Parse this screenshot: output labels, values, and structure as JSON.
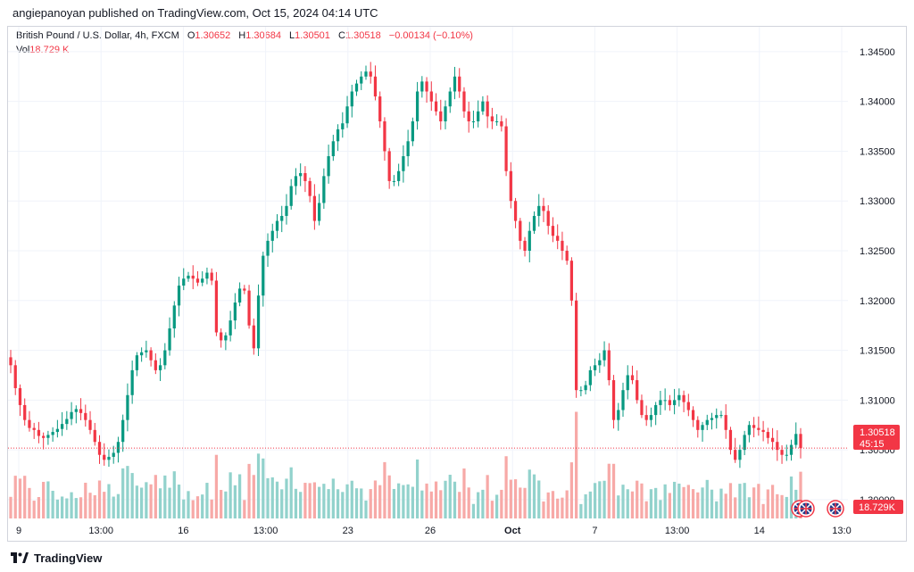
{
  "header": {
    "publisher_line": "angiepanoyan published on TradingView.com, Oct 15, 2024 04:14 UTC"
  },
  "legend": {
    "symbol": "British Pound / U.S. Dollar, 4h, FXCM",
    "open_label": "O",
    "open": "1.30652",
    "high_label": "H",
    "high": "1.30684",
    "low_label": "L",
    "low": "1.30501",
    "close_label": "C",
    "close": "1.30518",
    "change": "−0.00134 (−0.10%)",
    "vol_label": "Vol",
    "vol_value": "18.729 K"
  },
  "price_axis": {
    "last_price_label": "1.30518",
    "countdown": "45:15",
    "volume_label": "18.729K"
  },
  "footer": {
    "brand": "TradingView"
  },
  "colors": {
    "up": "#089981",
    "down": "#f23645",
    "up_vol": "#92d2cc",
    "down_vol": "#f7a9a7",
    "grid": "#f0f3fa"
  },
  "chart_data": {
    "type": "candlestick",
    "symbol": "GBP/USD",
    "interval": "4h",
    "y_ticks": [
      "1.30000",
      "1.30500",
      "1.31000",
      "1.31500",
      "1.32000",
      "1.32500",
      "1.33000",
      "1.33500",
      "1.34000",
      "1.34500"
    ],
    "y_range": [
      1.2982,
      1.3475
    ],
    "x_ticks": [
      "9",
      "13:00",
      "16",
      "13:00",
      "23",
      "26",
      "Oct",
      "7",
      "13:00",
      "14",
      "13:0"
    ],
    "last_price": 1.30518,
    "close_path": [
      1.3135,
      1.3112,
      1.3095,
      1.308,
      1.3072,
      1.307,
      1.3064,
      1.3062,
      1.3065,
      1.3068,
      1.3071,
      1.3076,
      1.3081,
      1.3088,
      1.3091,
      1.3087,
      1.308,
      1.307,
      1.3058,
      1.3045,
      1.304,
      1.3043,
      1.3047,
      1.3058,
      1.308,
      1.3105,
      1.313,
      1.3145,
      1.3148,
      1.315,
      1.314,
      1.313,
      1.3135,
      1.315,
      1.3172,
      1.3195,
      1.3215,
      1.3222,
      1.3225,
      1.3222,
      1.3218,
      1.3222,
      1.3228,
      1.322,
      1.3168,
      1.316,
      1.3165,
      1.318,
      1.3198,
      1.3212,
      1.321,
      1.3175,
      1.3152,
      1.3205,
      1.3245,
      1.326,
      1.327,
      1.328,
      1.3285,
      1.3295,
      1.3315,
      1.3325,
      1.3328,
      1.332,
      1.3305,
      1.328,
      1.3298,
      1.3325,
      1.3345,
      1.336,
      1.3372,
      1.3378,
      1.3395,
      1.341,
      1.3418,
      1.3425,
      1.343,
      1.3425,
      1.3405,
      1.338,
      1.335,
      1.332,
      1.332,
      1.333,
      1.3345,
      1.336,
      1.338,
      1.341,
      1.342,
      1.341,
      1.34,
      1.339,
      1.338,
      1.3395,
      1.341,
      1.3425,
      1.341,
      1.339,
      1.338,
      1.338,
      1.339,
      1.34,
      1.3385,
      1.338,
      1.338,
      1.3375,
      1.333,
      1.33,
      1.328,
      1.326,
      1.325,
      1.327,
      1.3285,
      1.3295,
      1.329,
      1.3275,
      1.3265,
      1.326,
      1.325,
      1.324,
      1.32,
      1.311,
      1.311,
      1.3115,
      1.313,
      1.3135,
      1.314,
      1.315,
      1.312,
      1.308,
      1.309,
      1.311,
      1.3125,
      1.312,
      1.31,
      1.3085,
      1.308,
      1.3085,
      1.3095,
      1.31,
      1.31,
      1.3095,
      1.31,
      1.3105,
      1.3098,
      1.309,
      1.308,
      1.307,
      1.3075,
      1.308,
      1.3082,
      1.3085,
      1.3085,
      1.307,
      1.305,
      1.304,
      1.305,
      1.3065,
      1.3075,
      1.3072,
      1.307,
      1.3068,
      1.3062,
      1.3058,
      1.305,
      1.3045,
      1.3045,
      1.3055,
      1.3066,
      1.30518
    ]
  }
}
